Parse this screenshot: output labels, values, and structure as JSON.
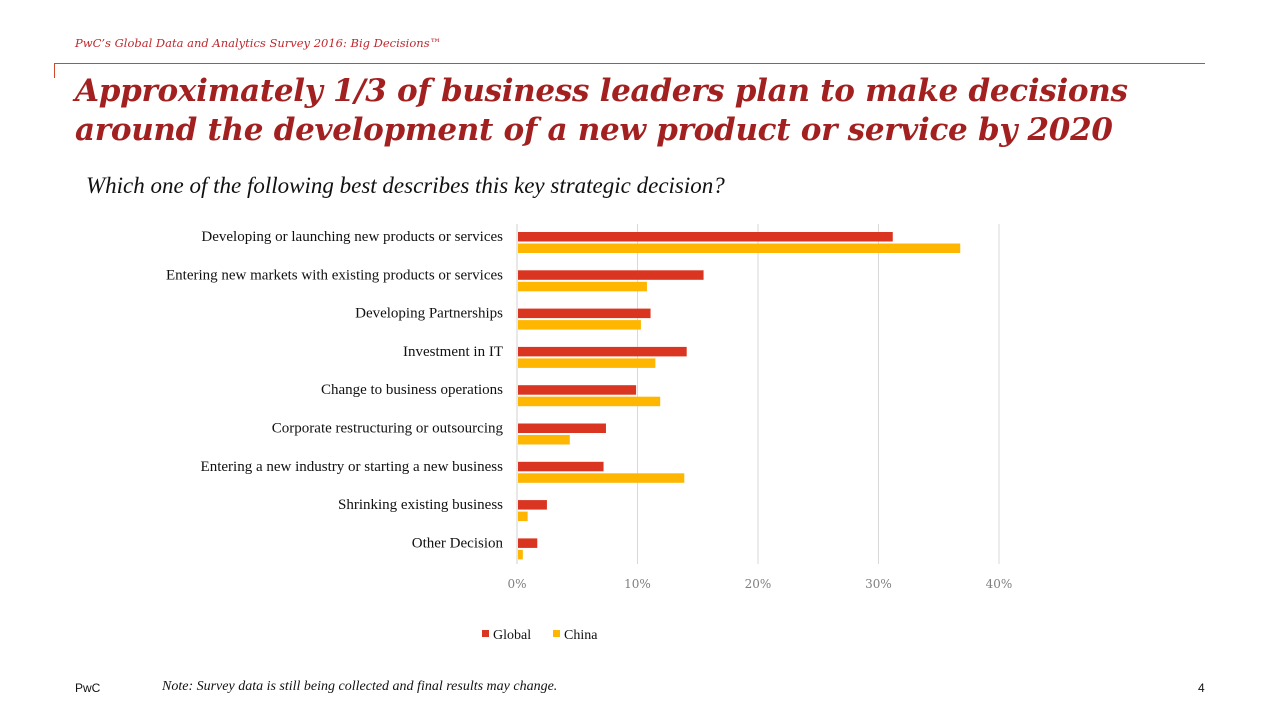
{
  "header": {
    "source": "PwC’s Global Data and Analytics Survey 2016: Big Decisions™",
    "title": "Approximately 1/3 of business leaders plan to make decisions around the development of a new product or service by 2020",
    "subtitle": "Which one of the following best describes this key strategic decision?"
  },
  "colors": {
    "accent": "#a32020",
    "global": "#d93520",
    "china": "#ffb600",
    "grid": "#d9d9d9"
  },
  "chart_data": {
    "type": "bar",
    "orientation": "horizontal",
    "categories": [
      "Developing or launching new products or services",
      "Entering new markets with existing products or services",
      "Developing Partnerships",
      "Investment in IT",
      "Change to business operations",
      "Corporate restructuring or outsourcing",
      "Entering a new industry or starting a new business",
      "Shrinking existing business",
      "Other Decision"
    ],
    "series": [
      {
        "name": "Global",
        "color": "#d93520",
        "values": [
          31.1,
          15.4,
          11.0,
          14.0,
          9.8,
          7.3,
          7.1,
          2.4,
          1.6
        ]
      },
      {
        "name": "China",
        "color": "#ffb600",
        "values": [
          36.7,
          10.7,
          10.2,
          11.4,
          11.8,
          4.3,
          13.8,
          0.8,
          0.4
        ]
      }
    ],
    "xlim": [
      0,
      40
    ],
    "xticks": [
      "0%",
      "10%",
      "20%",
      "30%",
      "40%"
    ],
    "grid": true,
    "legend_position": "bottom"
  },
  "footer": {
    "brand": "PwC",
    "note": "Note: Survey data is still being collected and final results may change.",
    "page_number": "4"
  }
}
